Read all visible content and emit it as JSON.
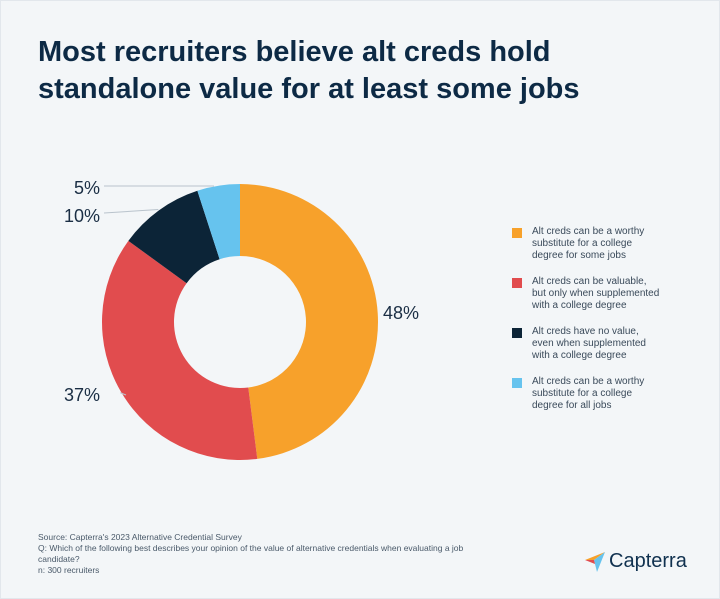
{
  "title_lines": [
    "Most recruiters believe alt creds hold",
    "standalone value for at least some jobs"
  ],
  "chart_data": {
    "type": "pie",
    "donut": true,
    "title": "Most recruiters believe alt creds hold standalone value for at least some jobs",
    "labels": [
      "Alt creds can be a worthy substitute for a college degree for some jobs",
      "Alt creds can be valuable, but only when supplemented with a college degree",
      "Alt creds have no value, even when supplemented with a college degree",
      "Alt creds can be a worthy substitute for a college degree for all jobs"
    ],
    "values": [
      48,
      37,
      10,
      5
    ],
    "value_labels": [
      "48%",
      "37%",
      "10%",
      "5%"
    ],
    "colors": [
      "#f7a12b",
      "#e14c4e",
      "#0c2437",
      "#66c3ee"
    ],
    "legend_position": "right"
  },
  "legend": [
    {
      "lines": [
        "Alt creds can be a worthy",
        "substitute for a college",
        "degree for some jobs"
      ],
      "color": "#f7a12b"
    },
    {
      "lines": [
        "Alt creds can be valuable,",
        "but only when supplemented",
        "with a college degree"
      ],
      "color": "#e14c4e"
    },
    {
      "lines": [
        "Alt creds have no value,",
        "even when supplemented",
        "with a college degree"
      ],
      "color": "#0c2437"
    },
    {
      "lines": [
        "Alt creds can be a worthy",
        "substitute for a college",
        "degree for all jobs"
      ],
      "color": "#66c3ee"
    }
  ],
  "footer": {
    "source": "Source: Capterra's 2023 Alternative Credential Survey",
    "question_line1": "Q: Which of the following best describes your opinion of the value of alternative credentials when evaluating a job",
    "question_line2": "candidate?",
    "n": "n: 300 recruiters"
  },
  "logo": {
    "text": "Capterra",
    "icon": "capterra-arrow-icon",
    "colors": [
      "#f7a12b",
      "#e14c4e",
      "#66c3ee",
      "#0c2437"
    ]
  }
}
